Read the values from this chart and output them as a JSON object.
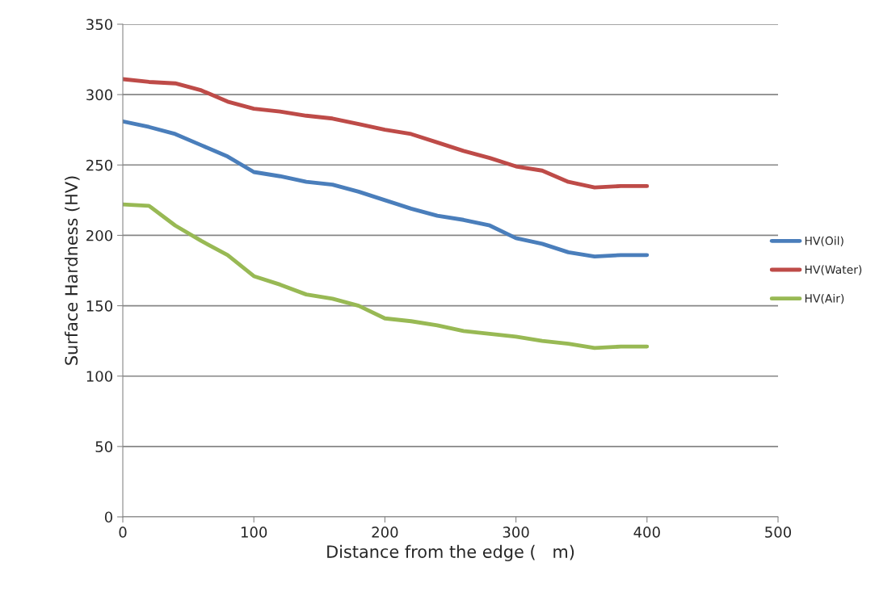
{
  "chart_data": {
    "type": "line",
    "xlabel": "Distance from the edge (   m)",
    "ylabel": "Surface Hardness (HV)",
    "x": [
      0,
      20,
      40,
      60,
      80,
      100,
      120,
      140,
      160,
      180,
      200,
      220,
      240,
      260,
      280,
      300,
      320,
      340,
      360,
      380,
      400
    ],
    "series": [
      {
        "name": "HV(Oil)",
        "color": "#4a7ebb",
        "values": [
          281,
          277,
          272,
          264,
          256,
          245,
          242,
          238,
          236,
          231,
          225,
          219,
          214,
          211,
          207,
          198,
          194,
          188,
          185,
          186,
          186
        ]
      },
      {
        "name": "HV(Water)",
        "color": "#be4b48",
        "values": [
          311,
          309,
          308,
          303,
          295,
          290,
          288,
          285,
          283,
          279,
          275,
          272,
          266,
          260,
          255,
          249,
          246,
          238,
          234,
          235,
          235
        ]
      },
      {
        "name": "HV(Air)",
        "color": "#98b954",
        "values": [
          222,
          221,
          207,
          196,
          186,
          171,
          165,
          158,
          155,
          150,
          141,
          139,
          136,
          132,
          130,
          128,
          125,
          123,
          120,
          121,
          121
        ]
      }
    ],
    "xlim": [
      0,
      500
    ],
    "xticks": [
      0,
      100,
      200,
      300,
      400,
      500
    ],
    "ylim": [
      0,
      350
    ],
    "yticks": [
      0,
      50,
      100,
      150,
      200,
      250,
      300,
      350
    ],
    "grid": "y",
    "legend": "right",
    "marker": "none",
    "line_style": "solid"
  }
}
